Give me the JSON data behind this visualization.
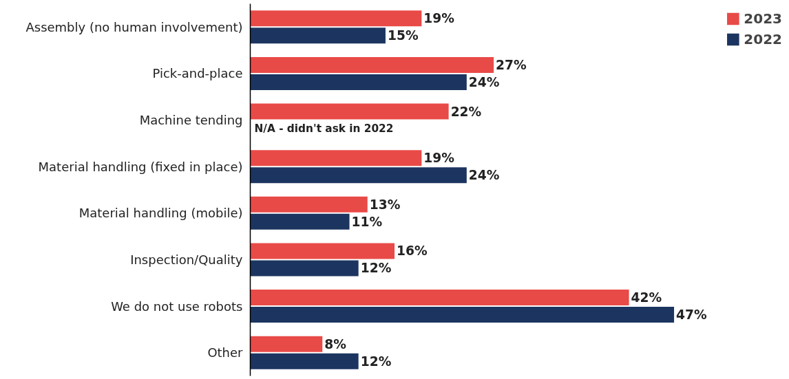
{
  "chart_data": {
    "type": "bar",
    "orientation": "horizontal",
    "categories": [
      "Assembly (no human involvement)",
      "Pick-and-place",
      "Machine tending",
      "Material handling (fixed in place)",
      "Material handling (mobile)",
      "Inspection/Quality",
      "We do not use robots",
      "Other"
    ],
    "series": [
      {
        "name": "2023",
        "color": "#e84a47",
        "values": [
          19,
          27,
          22,
          19,
          13,
          16,
          42,
          8
        ],
        "value_labels": [
          "19%",
          "27%",
          "22%",
          "19%",
          "13%",
          "16%",
          "42%",
          "8%"
        ]
      },
      {
        "name": "2022",
        "color": "#1c3560",
        "values": [
          15,
          24,
          null,
          24,
          11,
          12,
          47,
          12
        ],
        "value_labels": [
          "15%",
          "24%",
          null,
          "24%",
          "11%",
          "12%",
          "47%",
          "12%"
        ]
      }
    ],
    "tick_labels": "y",
    "legend": "top right",
    "annotations": [
      {
        "text": "N/A - didn't ask in 2022",
        "x": 0,
        "y": "Machine tending"
      }
    ]
  }
}
